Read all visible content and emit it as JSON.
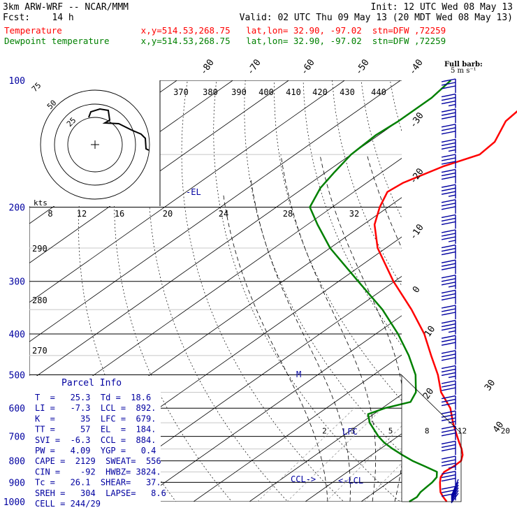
{
  "header": {
    "model_line": "3km ARW-WRF -- NCAR/MMM",
    "init_line": "Init: 12 UTC Wed 08 May 13",
    "fcst_line": "Fcst:    14 h",
    "valid_line": "Valid: 02 UTC Thu 09 May 13 (20 MDT Wed 08 May 13)",
    "temperature_line": "Temperature               x,y=514.53,268.75   lat,lon= 32.90, -97.02  stn=DFW ,72259",
    "dewpoint_line": "Dewpoint temperature      x,y=514.53,268.75   lat,lon= 32.90, -97.02  stn=DFW ,72259"
  },
  "colors": {
    "temperature": "#ff0000",
    "dewpoint": "#008000",
    "text_header": "#000000",
    "axis_blue": "#0000a0",
    "grid": "#000000",
    "guide": "#bbbbbb"
  },
  "chart_data": {
    "type": "line",
    "pressure_levels_hpa": [
      "100",
      "200",
      "300",
      "400",
      "500",
      "600",
      "700",
      "800",
      "900",
      "1000"
    ],
    "isotherm_labels_c": [
      "-80",
      "-70",
      "-60",
      "-50",
      "-40",
      "-30",
      "-20",
      "-10",
      "0",
      "10",
      "20",
      "30",
      "40"
    ],
    "theta_labels_k": [
      "370",
      "380",
      "390",
      "400",
      "410",
      "420",
      "430",
      "440"
    ],
    "mixing_ratio_labels": [
      "2",
      "3",
      "5",
      "8",
      "12",
      "20"
    ],
    "hodograph": {
      "ring_labels": [
        "75",
        "50",
        "25"
      ],
      "units_label": "kts",
      "speed_scale_labels": [
        "8",
        "12",
        "16",
        "20",
        "24",
        "28",
        "32"
      ],
      "side_theta_labels": [
        "290",
        "280",
        "270"
      ]
    },
    "series": [
      {
        "name": "Temperature",
        "color": "#ff0000",
        "points": [
          [
            1000,
            25.3
          ],
          [
            975,
            23.5
          ],
          [
            950,
            21.8
          ],
          [
            925,
            20.5
          ],
          [
            900,
            19.2
          ],
          [
            875,
            18.0
          ],
          [
            850,
            17.3
          ],
          [
            825,
            17.6
          ],
          [
            800,
            17.5
          ],
          [
            775,
            16.3
          ],
          [
            750,
            14.6
          ],
          [
            725,
            12.6
          ],
          [
            700,
            10.6
          ],
          [
            650,
            6.4
          ],
          [
            600,
            2.2
          ],
          [
            550,
            -3.5
          ],
          [
            500,
            -8.5
          ],
          [
            450,
            -14.6
          ],
          [
            400,
            -21.3
          ],
          [
            350,
            -29.8
          ],
          [
            300,
            -40.2
          ],
          [
            250,
            -51.5
          ],
          [
            220,
            -58.0
          ],
          [
            200,
            -61.5
          ],
          [
            184,
            -64.0
          ],
          [
            175,
            -63.5
          ],
          [
            160,
            -60.5
          ],
          [
            150,
            -57.0
          ],
          [
            140,
            -57.5
          ],
          [
            125,
            -60.8
          ],
          [
            115,
            -61.5
          ],
          [
            100,
            -66.0
          ]
        ]
      },
      {
        "name": "Dewpoint temperature",
        "color": "#008000",
        "points": [
          [
            1000,
            18.6
          ],
          [
            975,
            18.8
          ],
          [
            950,
            18.2
          ],
          [
            925,
            18.0
          ],
          [
            900,
            17.8
          ],
          [
            875,
            17.3
          ],
          [
            850,
            16.0
          ],
          [
            825,
            12.5
          ],
          [
            800,
            8.8
          ],
          [
            775,
            5.5
          ],
          [
            750,
            2.3
          ],
          [
            725,
            -0.8
          ],
          [
            700,
            -3.5
          ],
          [
            650,
            -8.5
          ],
          [
            620,
            -11.0
          ],
          [
            600,
            -9.5
          ],
          [
            580,
            -6.5
          ],
          [
            550,
            -8.0
          ],
          [
            500,
            -12.5
          ],
          [
            450,
            -18.6
          ],
          [
            400,
            -26.0
          ],
          [
            350,
            -35.0
          ],
          [
            300,
            -46.5
          ],
          [
            250,
            -60.0
          ],
          [
            220,
            -68.2
          ],
          [
            200,
            -74.0
          ],
          [
            180,
            -77.0
          ],
          [
            165,
            -78.5
          ],
          [
            150,
            -80.0
          ],
          [
            135,
            -80.5
          ],
          [
            125,
            -80.0
          ],
          [
            110,
            -80.0
          ],
          [
            100,
            -81.0
          ]
        ]
      }
    ]
  },
  "annotations": {
    "el_marker": "-EL",
    "lfc_marker": "LFC",
    "lcl_marker": "<-LCL",
    "ccl_marker": "CCL->",
    "m_marker": "M"
  },
  "parcel_info": {
    "title": "Parcel Info",
    "rows": [
      "T  =   25.3  Td =  18.6",
      "LI =   -7.3  LCL =  892.",
      "K  =     35  LFC =  679.",
      "TT =     57  EL  =  184.",
      "SVI =  -6.3  CCL =  884.",
      "PW =   4.09  YGP =   0.4",
      "CAPE =  2129  SWEAT=  556",
      "CIN =    -92  HWBZ= 3824.",
      "Tc =   26.1  SHEAR=   37.",
      "SREH =   304  LAPSE=   8.6",
      "CELL = 244/29"
    ]
  },
  "full_barb": {
    "line1": "Full barb:",
    "line2": "5 m s⁻¹"
  },
  "wind_barbs_count": 28
}
